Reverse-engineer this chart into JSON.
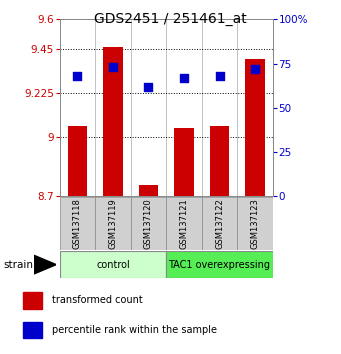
{
  "title": "GDS2451 / 251461_at",
  "samples": [
    "GSM137118",
    "GSM137119",
    "GSM137120",
    "GSM137121",
    "GSM137122",
    "GSM137123"
  ],
  "red_values": [
    9.06,
    9.46,
    8.76,
    9.05,
    9.06,
    9.4
  ],
  "blue_values": [
    68,
    73,
    62,
    67,
    68,
    72
  ],
  "ylim_left": [
    8.7,
    9.6
  ],
  "ylim_right": [
    0,
    100
  ],
  "yticks_left": [
    8.7,
    9.0,
    9.225,
    9.45,
    9.6
  ],
  "ytick_labels_left": [
    "8.7",
    "9",
    "9.225",
    "9.45",
    "9.6"
  ],
  "yticks_right": [
    0,
    25,
    50,
    75,
    100
  ],
  "ytick_labels_right": [
    "0",
    "25",
    "50",
    "75",
    "100%"
  ],
  "hlines": [
    9.0,
    9.225,
    9.45
  ],
  "bar_bottom": 8.7,
  "bar_color": "#cc0000",
  "dot_color": "#0000cc",
  "groups": [
    {
      "label": "control",
      "samples": [
        0,
        1,
        2
      ],
      "color": "#ccffcc",
      "border": "#888888"
    },
    {
      "label": "TAC1 overexpressing",
      "samples": [
        3,
        4,
        5
      ],
      "color": "#55ee55",
      "border": "#888888"
    }
  ],
  "strain_label": "strain",
  "bar_width": 0.55,
  "dot_size": 30,
  "title_fontsize": 10,
  "tick_fontsize": 7.5,
  "sample_fontsize": 6,
  "group_fontsize": 7,
  "legend_fontsize": 7
}
